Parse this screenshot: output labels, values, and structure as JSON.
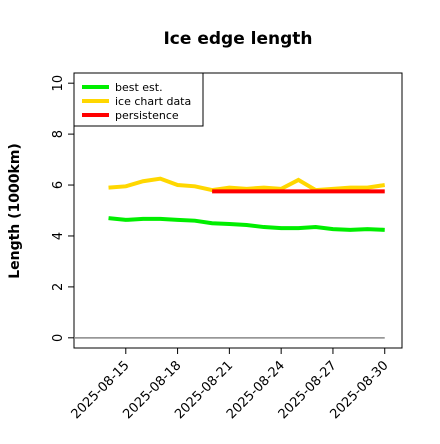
{
  "chart_data": {
    "type": "line",
    "title": "Ice edge length",
    "y_label": "Length (1000km)",
    "x": [
      "2025-08-14",
      "2025-08-15",
      "2025-08-16",
      "2025-08-17",
      "2025-08-18",
      "2025-08-19",
      "2025-08-20",
      "2025-08-21",
      "2025-08-22",
      "2025-08-23",
      "2025-08-24",
      "2025-08-25",
      "2025-08-26",
      "2025-08-27",
      "2025-08-28",
      "2025-08-29",
      "2025-08-30"
    ],
    "series": [
      {
        "name": "best est.",
        "color": "#00ee00",
        "values": [
          4.7,
          4.63,
          4.67,
          4.67,
          4.63,
          4.6,
          4.5,
          4.47,
          4.43,
          4.35,
          4.31,
          4.31,
          4.35,
          4.27,
          4.24,
          4.27,
          4.24
        ]
      },
      {
        "name": "ice chart data",
        "color": "#ffd700",
        "values": [
          5.9,
          5.95,
          6.15,
          6.25,
          6.0,
          5.95,
          5.8,
          5.9,
          5.85,
          5.9,
          5.85,
          6.2,
          5.8,
          5.85,
          5.9,
          5.9,
          6.0
        ]
      },
      {
        "name": "persistence",
        "color": "#ff0000",
        "values": [
          null,
          null,
          null,
          null,
          null,
          null,
          5.75,
          5.75,
          5.75,
          5.75,
          5.75,
          5.75,
          5.75,
          5.75,
          5.75,
          5.75,
          5.75
        ]
      }
    ],
    "baseline": {
      "value": 0,
      "color": "#888888",
      "x": [
        "2025-08-12",
        "2025-08-30"
      ]
    },
    "xlim": [
      "2025-08-12",
      "2025-08-31"
    ],
    "xticks": [
      "2025-08-15",
      "2025-08-18",
      "2025-08-21",
      "2025-08-24",
      "2025-08-27",
      "2025-08-30"
    ],
    "ylim": [
      -0.4,
      10.4
    ],
    "yticks": [
      0,
      2,
      4,
      6,
      8,
      10
    ],
    "legend": "top-left"
  }
}
